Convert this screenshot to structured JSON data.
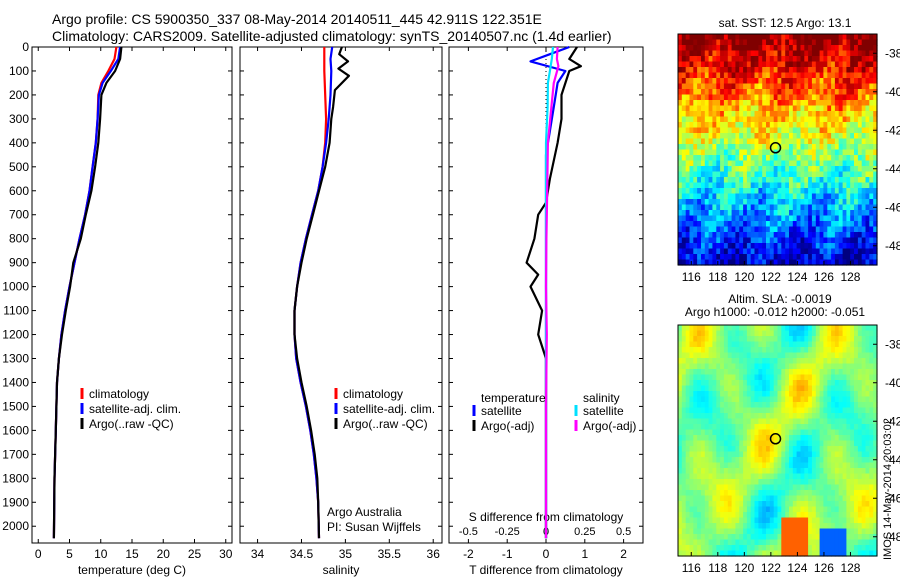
{
  "header": {
    "line1": "Argo profile: CS 5900350_337 08-May-2014 20140511_445 42.911S 122.351E",
    "line2": "Climatology: CARS2009. Satellite-adjusted climatology: synTS_20140507.nc (1.4d earlier)"
  },
  "colors": {
    "climatology": "#ff0000",
    "satellite": "#0000ff",
    "argo": "#000000",
    "sal_satellite": "#00e0ff",
    "sal_argo": "#ff00ff"
  },
  "chart_data": [
    {
      "type": "line",
      "panel": "temperature",
      "xlabel": "temperature (deg C)",
      "ylabel": "",
      "xlim": [
        -1,
        31
      ],
      "ylim": [
        2070,
        0
      ],
      "xticks": [
        "0",
        "5",
        "10",
        "15",
        "20",
        "25",
        "30"
      ],
      "yticks": [
        "0",
        "100",
        "200",
        "300",
        "400",
        "500",
        "600",
        "700",
        "800",
        "900",
        "1000",
        "1100",
        "1200",
        "1300",
        "1400",
        "1500",
        "1600",
        "1700",
        "1800",
        "1900",
        "2000"
      ],
      "legend": [
        "climatology",
        "satellite-adj. clim.",
        "Argo(..raw -QC)"
      ],
      "series": [
        {
          "name": "climatology",
          "color": "#ff0000",
          "points": [
            [
              12.5,
              0
            ],
            [
              12.2,
              50
            ],
            [
              11.2,
              100
            ],
            [
              10.1,
              150
            ],
            [
              9.6,
              200
            ],
            [
              9.5,
              300
            ],
            [
              9.2,
              400
            ],
            [
              8.7,
              500
            ],
            [
              8.2,
              600
            ],
            [
              7.5,
              700
            ],
            [
              6.6,
              800
            ],
            [
              5.8,
              900
            ],
            [
              5,
              1000
            ],
            [
              4.3,
              1100
            ],
            [
              3.7,
              1200
            ],
            [
              3.3,
              1300
            ],
            [
              3.0,
              1400
            ],
            [
              2.8,
              1600
            ],
            [
              2.6,
              1800
            ],
            [
              2.5,
              2050
            ]
          ]
        },
        {
          "name": "satellite-adj. clim.",
          "color": "#0000ff",
          "points": [
            [
              13.1,
              0
            ],
            [
              12.8,
              50
            ],
            [
              11.6,
              100
            ],
            [
              10.3,
              150
            ],
            [
              9.7,
              200
            ],
            [
              9.5,
              300
            ],
            [
              9.2,
              400
            ],
            [
              8.7,
              500
            ],
            [
              8.2,
              600
            ],
            [
              7.5,
              700
            ],
            [
              6.6,
              800
            ],
            [
              5.8,
              900
            ],
            [
              5,
              1000
            ],
            [
              4.3,
              1100
            ],
            [
              3.7,
              1200
            ],
            [
              3.3,
              1300
            ],
            [
              3.0,
              1400
            ],
            [
              2.8,
              1600
            ],
            [
              2.6,
              1800
            ],
            [
              2.5,
              2050
            ]
          ]
        },
        {
          "name": "Argo(..raw -QC)",
          "color": "#000000",
          "points": [
            [
              13.3,
              0
            ],
            [
              13.1,
              50
            ],
            [
              12.3,
              100
            ],
            [
              10.9,
              150
            ],
            [
              10.1,
              200
            ],
            [
              9.9,
              300
            ],
            [
              9.6,
              400
            ],
            [
              9.1,
              500
            ],
            [
              8.5,
              600
            ],
            [
              7.6,
              700
            ],
            [
              6.8,
              800
            ],
            [
              5.6,
              900
            ],
            [
              5.1,
              1000
            ],
            [
              4.4,
              1100
            ],
            [
              3.8,
              1200
            ],
            [
              3.3,
              1300
            ],
            [
              3.0,
              1400
            ],
            [
              2.8,
              1600
            ],
            [
              2.6,
              1800
            ],
            [
              2.5,
              2050
            ]
          ]
        }
      ]
    },
    {
      "type": "line",
      "panel": "salinity",
      "xlabel": "salinity",
      "ylabel": "",
      "xlim": [
        33.8,
        36.1
      ],
      "ylim": [
        2070,
        0
      ],
      "xticks": [
        "34",
        "34.5",
        "35",
        "35.5",
        "36"
      ],
      "legend": [
        "climatology",
        "satellite-adj. clim.",
        "Argo(..raw -QC)"
      ],
      "annotation": [
        "Argo Australia",
        "PI: Susan Wijffels"
      ],
      "series": [
        {
          "name": "climatology",
          "color": "#ff0000",
          "points": [
            [
              34.76,
              0
            ],
            [
              34.76,
              100
            ],
            [
              34.77,
              200
            ],
            [
              34.78,
              300
            ],
            [
              34.77,
              400
            ],
            [
              34.74,
              500
            ],
            [
              34.69,
              600
            ],
            [
              34.62,
              700
            ],
            [
              34.55,
              800
            ],
            [
              34.49,
              900
            ],
            [
              34.45,
              1000
            ],
            [
              34.42,
              1100
            ],
            [
              34.42,
              1200
            ],
            [
              34.44,
              1300
            ],
            [
              34.49,
              1400
            ],
            [
              34.55,
              1500
            ],
            [
              34.6,
              1600
            ],
            [
              34.64,
              1700
            ],
            [
              34.67,
              1800
            ],
            [
              34.69,
              1900
            ],
            [
              34.7,
              2050
            ]
          ]
        },
        {
          "name": "satellite-adj. clim.",
          "color": "#0000ff",
          "points": [
            [
              34.85,
              0
            ],
            [
              34.83,
              50
            ],
            [
              34.84,
              100
            ],
            [
              34.83,
              200
            ],
            [
              34.81,
              300
            ],
            [
              34.78,
              400
            ],
            [
              34.74,
              500
            ],
            [
              34.69,
              600
            ],
            [
              34.62,
              700
            ],
            [
              34.55,
              800
            ],
            [
              34.49,
              900
            ],
            [
              34.45,
              1000
            ],
            [
              34.42,
              1100
            ],
            [
              34.42,
              1200
            ],
            [
              34.44,
              1300
            ],
            [
              34.49,
              1400
            ],
            [
              34.55,
              1500
            ],
            [
              34.6,
              1600
            ],
            [
              34.64,
              1700
            ],
            [
              34.67,
              1800
            ],
            [
              34.69,
              1900
            ],
            [
              34.7,
              2050
            ]
          ]
        },
        {
          "name": "Argo(..raw -QC)",
          "color": "#000000",
          "points": [
            [
              34.96,
              0
            ],
            [
              34.93,
              30
            ],
            [
              35.03,
              60
            ],
            [
              34.92,
              90
            ],
            [
              35.04,
              120
            ],
            [
              34.88,
              180
            ],
            [
              34.86,
              250
            ],
            [
              34.84,
              300
            ],
            [
              34.82,
              400
            ],
            [
              34.77,
              500
            ],
            [
              34.7,
              600
            ],
            [
              34.63,
              700
            ],
            [
              34.56,
              800
            ],
            [
              34.5,
              900
            ],
            [
              34.45,
              1000
            ],
            [
              34.42,
              1100
            ],
            [
              34.42,
              1200
            ],
            [
              34.45,
              1300
            ],
            [
              34.5,
              1400
            ],
            [
              34.56,
              1500
            ],
            [
              34.61,
              1600
            ],
            [
              34.65,
              1700
            ],
            [
              34.68,
              1800
            ],
            [
              34.69,
              1900
            ],
            [
              34.7,
              2050
            ]
          ]
        }
      ]
    },
    {
      "type": "line",
      "panel": "difference",
      "xlabel": "T difference from climatology",
      "xlabel_top": "S difference from climatology",
      "xlim": [
        -2.5,
        2.5
      ],
      "ylim": [
        2070,
        0
      ],
      "xticks": [
        "-2",
        "-1",
        "0",
        "1",
        "2"
      ],
      "xticks_s": [
        "-0.5",
        "-0.25",
        "0",
        "0.25",
        "0.5"
      ],
      "legend": {
        "temperature": [
          "temperature",
          "satellite",
          "Argo(-adj)"
        ],
        "salinity": [
          "salinity",
          "satellite",
          "Argo(-adj)"
        ]
      },
      "series": [
        {
          "name": "satellite",
          "color": "#0000ff",
          "points": [
            [
              0.6,
              0
            ],
            [
              0.1,
              30
            ],
            [
              -0.4,
              60
            ],
            [
              0.5,
              100
            ],
            [
              0.3,
              150
            ],
            [
              0.2,
              250
            ],
            [
              0.1,
              350
            ],
            [
              0,
              450
            ],
            [
              0,
              600
            ],
            [
              0,
              800
            ],
            [
              0,
              1200
            ],
            [
              0,
              2050
            ]
          ]
        },
        {
          "name": "Argo(-adj)",
          "color": "#000000",
          "points": [
            [
              0.8,
              0
            ],
            [
              0.6,
              50
            ],
            [
              0.9,
              80
            ],
            [
              0.6,
              100
            ],
            [
              0.4,
              200
            ],
            [
              0.4,
              300
            ],
            [
              0.3,
              400
            ],
            [
              0.1,
              550
            ],
            [
              0,
              650
            ],
            [
              -0.2,
              700
            ],
            [
              -0.3,
              800
            ],
            [
              -0.5,
              900
            ],
            [
              -0.2,
              950
            ],
            [
              -0.4,
              1000
            ],
            [
              -0.1,
              1100
            ],
            [
              -0.2,
              1200
            ],
            [
              0,
              1300
            ],
            [
              0,
              1500
            ],
            [
              0,
              2050
            ]
          ]
        },
        {
          "name": "satellite",
          "color": "#00e0ff",
          "points": [
            [
              0.18,
              0
            ],
            [
              0.15,
              50
            ],
            [
              0.1,
              100
            ],
            [
              0.05,
              150
            ],
            [
              0.04,
              250
            ],
            [
              0,
              400
            ],
            [
              0,
              600
            ],
            [
              0,
              2050
            ]
          ]
        },
        {
          "name": "Argo(-adj)",
          "color": "#ff00ff",
          "points": [
            [
              0.3,
              0
            ],
            [
              0.28,
              50
            ],
            [
              0.32,
              80
            ],
            [
              0.2,
              150
            ],
            [
              0.14,
              250
            ],
            [
              0.05,
              400
            ],
            [
              0.03,
              600
            ],
            [
              0.01,
              800
            ],
            [
              0,
              1000
            ],
            [
              0.02,
              1200
            ],
            [
              0,
              1500
            ],
            [
              0,
              2050
            ]
          ]
        }
      ]
    },
    {
      "type": "heatmap",
      "panel": "sst-map",
      "title": "sat. SST: 12.5  Argo: 13.1",
      "xlim": [
        115,
        130
      ],
      "ylim": [
        -49,
        -37
      ],
      "xticks": [
        "116",
        "118",
        "120",
        "122",
        "124",
        "126",
        "128"
      ],
      "yticks": [
        "-38",
        "-40",
        "-42",
        "-44",
        "-46",
        "-48"
      ],
      "marker": {
        "lon": 122.35,
        "lat": -42.91
      }
    },
    {
      "type": "heatmap",
      "panel": "sla-map",
      "title": "Altim. SLA: -0.0019",
      "subtitle": "Argo h1000: -0.012  h2000: -0.051",
      "xlim": [
        115,
        130
      ],
      "ylim": [
        -49,
        -37
      ],
      "xticks": [
        "116",
        "118",
        "120",
        "122",
        "124",
        "126",
        "128"
      ],
      "yticks": [
        "-38",
        "-40",
        "-42",
        "-44",
        "-46",
        "-48"
      ],
      "marker": {
        "lon": 122.35,
        "lat": -42.91
      }
    }
  ],
  "footer": {
    "stamp": "IMOS 14-May-2014 20:03:02"
  }
}
